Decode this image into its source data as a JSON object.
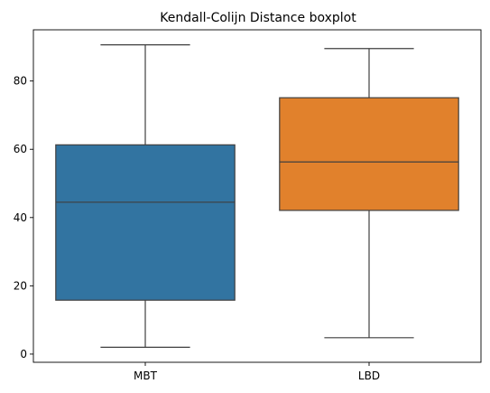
{
  "chart_data": {
    "type": "boxplot",
    "title": "Kendall-Colijn Distance boxplot",
    "xlabel": "",
    "ylabel": "",
    "categories": [
      "MBT",
      "LBD"
    ],
    "series": [
      {
        "name": "MBT",
        "color": "#3274a1",
        "min": 2,
        "q1": 15.8,
        "median": 44.5,
        "q3": 61.3,
        "max": 90.6
      },
      {
        "name": "LBD",
        "color": "#e1812c",
        "min": 4.8,
        "q1": 42.1,
        "median": 56.3,
        "q3": 75.1,
        "max": 89.5
      }
    ],
    "ylim": [
      -2.4,
      95
    ],
    "yticks": [
      0,
      20,
      40,
      60,
      80
    ],
    "grid": false,
    "legend": "none"
  }
}
